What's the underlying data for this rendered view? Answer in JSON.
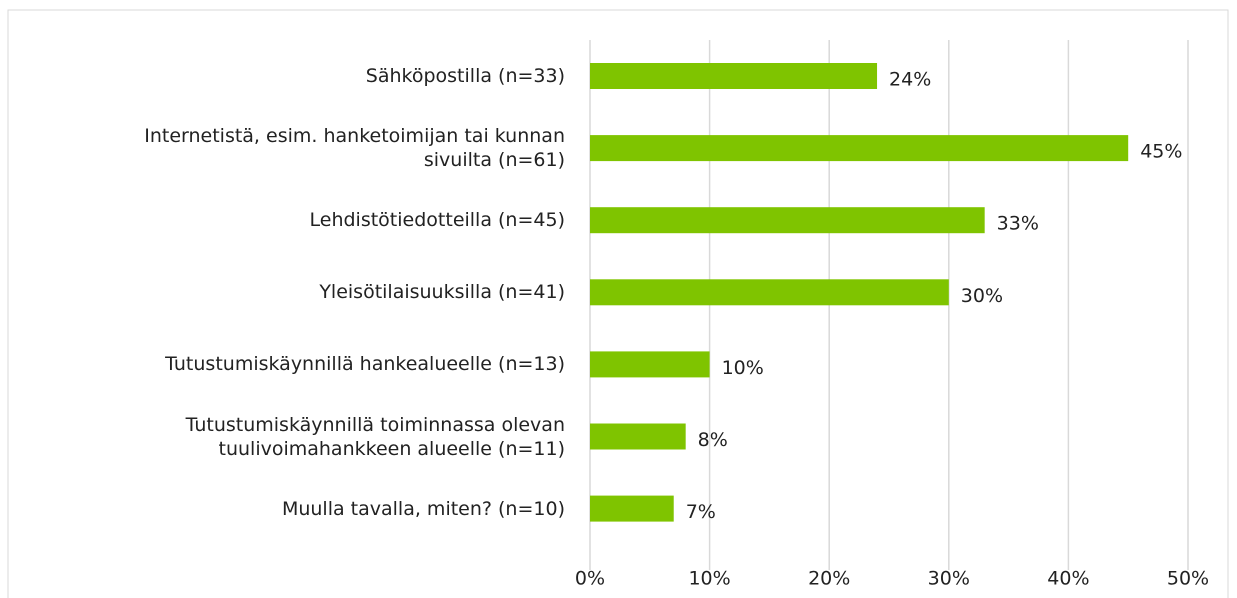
{
  "chart_data": {
    "type": "bar",
    "orientation": "horizontal",
    "categories": [
      "Sähköpostilla (n=33)",
      "Internetistä, esim. hanketoimijan tai kunnan\nsivuilta (n=61)",
      "Lehdistötiedotteilla (n=45)",
      "Yleisötilaisuuksilla (n=41)",
      "Tutustumiskäynnillä hankealueelle (n=13)",
      "Tutustumiskäynnillä toiminnassa olevan\ntuulivoimahankkeen alueelle (n=11)",
      "Muulla tavalla, miten? (n=10)"
    ],
    "values": [
      24,
      45,
      33,
      30,
      10,
      8,
      7
    ],
    "value_labels": [
      "24%",
      "45%",
      "33%",
      "30%",
      "10%",
      "8%",
      "7%"
    ],
    "color": "#7fc400",
    "xlim": [
      0,
      50
    ],
    "xticks": [
      {
        "value": 0,
        "label": "0%"
      },
      {
        "value": 10,
        "label": "10%"
      },
      {
        "value": 20,
        "label": "20%"
      },
      {
        "value": 30,
        "label": "30%"
      },
      {
        "value": 40,
        "label": "40%"
      },
      {
        "value": 50,
        "label": "50%"
      }
    ],
    "grid": true
  }
}
